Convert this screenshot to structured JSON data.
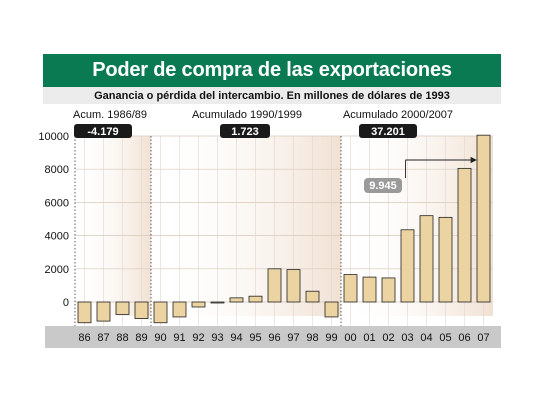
{
  "chart_data": {
    "type": "bar",
    "title": "Poder de compra de las exportaciones",
    "subtitle": "Ganancia o pérdida del intercambio. En millones de dólares de 1993",
    "categories": [
      "86",
      "87",
      "88",
      "89",
      "90",
      "91",
      "92",
      "93",
      "94",
      "95",
      "96",
      "97",
      "98",
      "99",
      "00",
      "01",
      "02",
      "03",
      "04",
      "05",
      "06",
      "07"
    ],
    "values": [
      -1250,
      -1150,
      -750,
      -1000,
      -1250,
      -900,
      -300,
      -50,
      250,
      350,
      2000,
      1950,
      650,
      -900,
      1650,
      1500,
      1450,
      4350,
      5200,
      5100,
      8050,
      10050
    ],
    "ylim": [
      -1300,
      10100
    ],
    "yticks": [
      0,
      2000,
      4000,
      6000,
      8000,
      10000
    ],
    "grid": true,
    "periods": [
      {
        "label": "Acum. 1986/89",
        "value": "-4.179",
        "start": 0,
        "end": 3
      },
      {
        "label": "Acumulado 1990/1999",
        "value": "1.723",
        "start": 4,
        "end": 13
      },
      {
        "label": "Acumulado 2000/2007",
        "value": "37.201",
        "start": 14,
        "end": 21
      }
    ],
    "annotation": {
      "value": "9.945",
      "from_index": 19,
      "to_index": 21
    }
  },
  "colors": {
    "header": "#0a7a52",
    "bar_fill": "#ecd3a2",
    "bar_stroke": "#222222",
    "badge": "#1a1a1a",
    "annotation_badge": "#9a9a9a",
    "axis_band": "#c9c9c9",
    "shade": "#f3e6da"
  }
}
